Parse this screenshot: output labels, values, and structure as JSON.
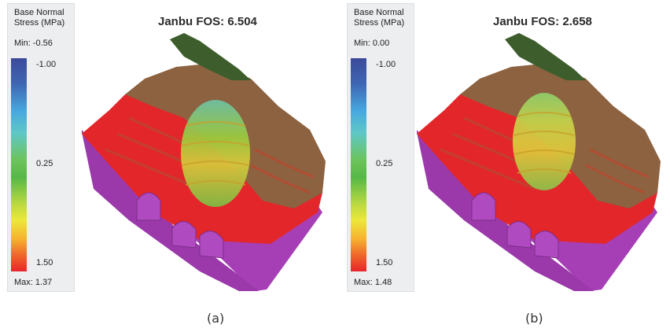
{
  "panels": [
    {
      "title": "Janbu FOS: 6.504",
      "legend": {
        "title": "Base Normal Stress (MPa)",
        "min_label": "Min: -0.56",
        "max_label": "Max: 1.37",
        "ticks": [
          "-1.00",
          "0.25",
          "1.50"
        ]
      },
      "caption": "(a)"
    },
    {
      "title": "Janbu FOS: 2.658",
      "legend": {
        "title": "Base Normal Stress (MPa)",
        "min_label": "Min: 0.00",
        "max_label": "Max: 1.48",
        "ticks": [
          "-1.00",
          "0.25",
          "1.50"
        ]
      },
      "caption": "(b)"
    }
  ],
  "colors": {
    "purple_base": "#a63fb5",
    "red_slope": "#e3262a",
    "brown_terrain": "#8c6240",
    "green_top": "#3d5e2c",
    "stress_green": "#7fc43b",
    "stress_yellow": "#e8d33a"
  }
}
